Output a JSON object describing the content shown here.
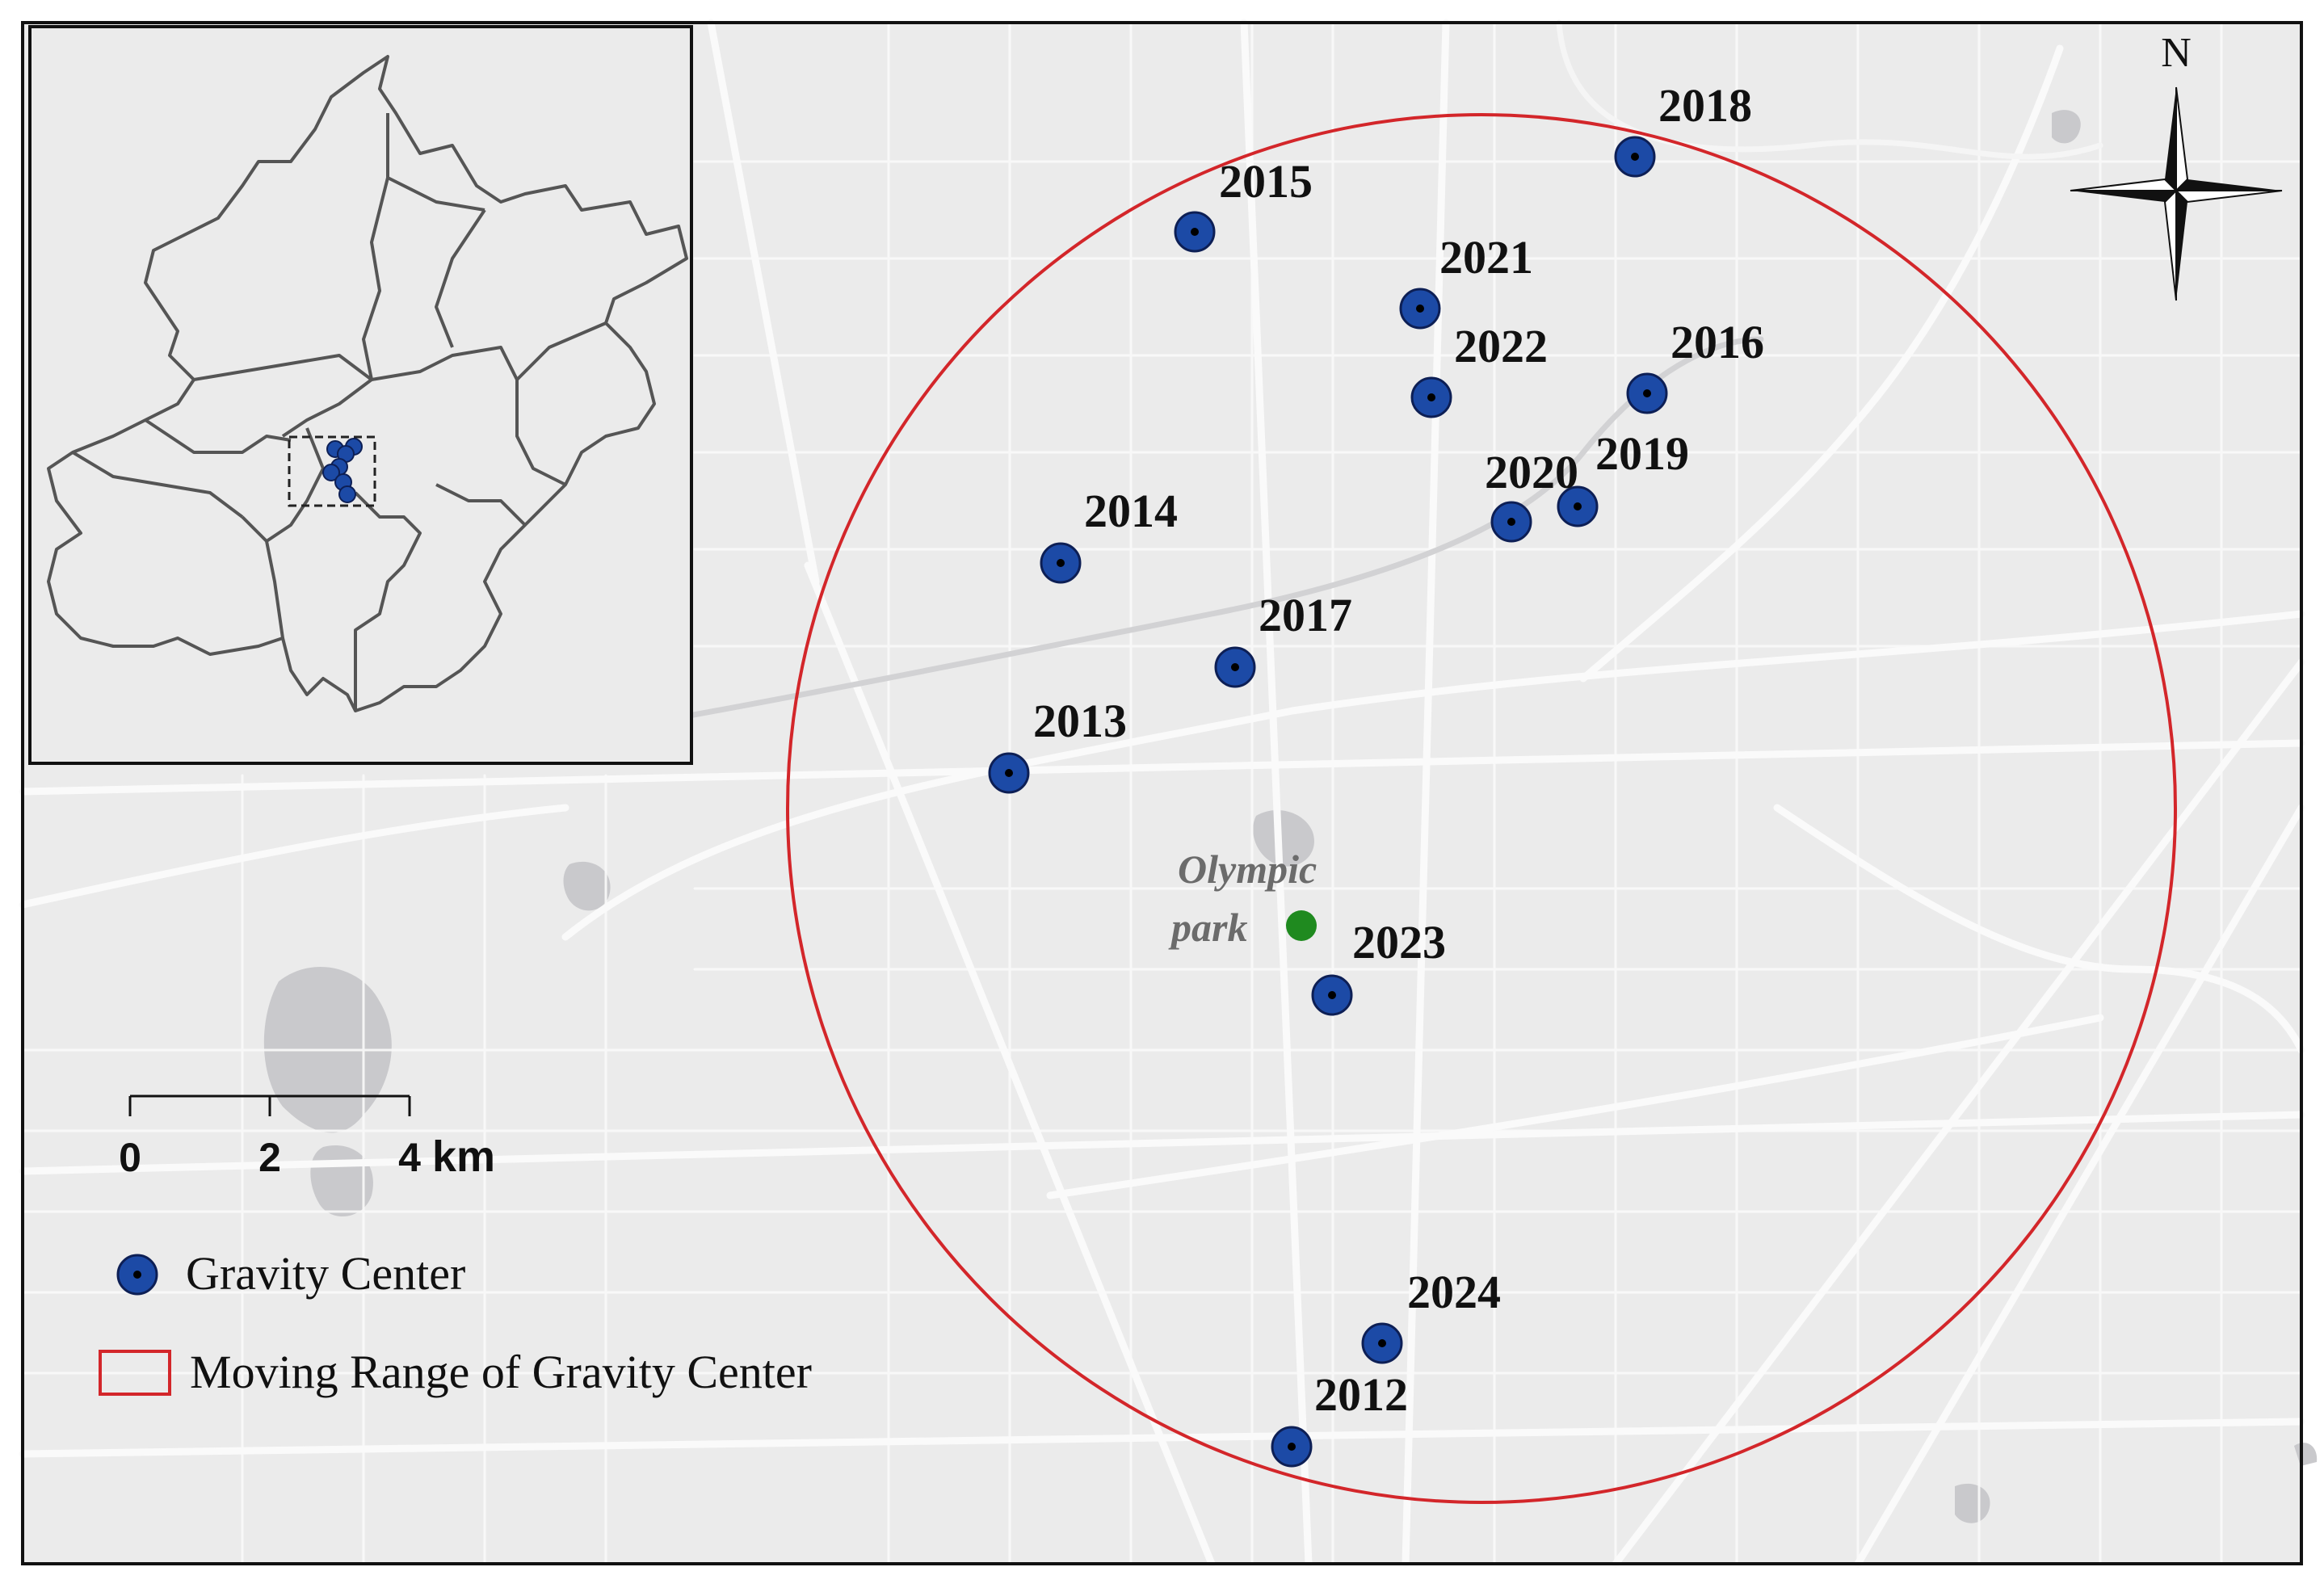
{
  "colors": {
    "background": "#ebebeb",
    "road": "#fafafa",
    "water": "#c9c9cc",
    "gravity_center_fill": "#1c4aa6",
    "gravity_center_stroke": "#0d1f55",
    "park": "#1f8a1f",
    "range_circle": "#d3262a",
    "frame": "#111111"
  },
  "compass": {
    "north_label": "N"
  },
  "landmark": {
    "name_line1": "Olympic",
    "name_line2": "park"
  },
  "scale_bar": {
    "ticks": [
      "0",
      "2",
      "4"
    ],
    "unit": "km"
  },
  "legend": {
    "gravity_center": "Gravity Center",
    "moving_range": "Moving Range of Gravity Center"
  },
  "gravity_centers": [
    {
      "year": "2012"
    },
    {
      "year": "2013"
    },
    {
      "year": "2014"
    },
    {
      "year": "2015"
    },
    {
      "year": "2016"
    },
    {
      "year": "2017"
    },
    {
      "year": "2018"
    },
    {
      "year": "2019"
    },
    {
      "year": "2020"
    },
    {
      "year": "2021"
    },
    {
      "year": "2022"
    },
    {
      "year": "2023"
    },
    {
      "year": "2024"
    }
  ]
}
